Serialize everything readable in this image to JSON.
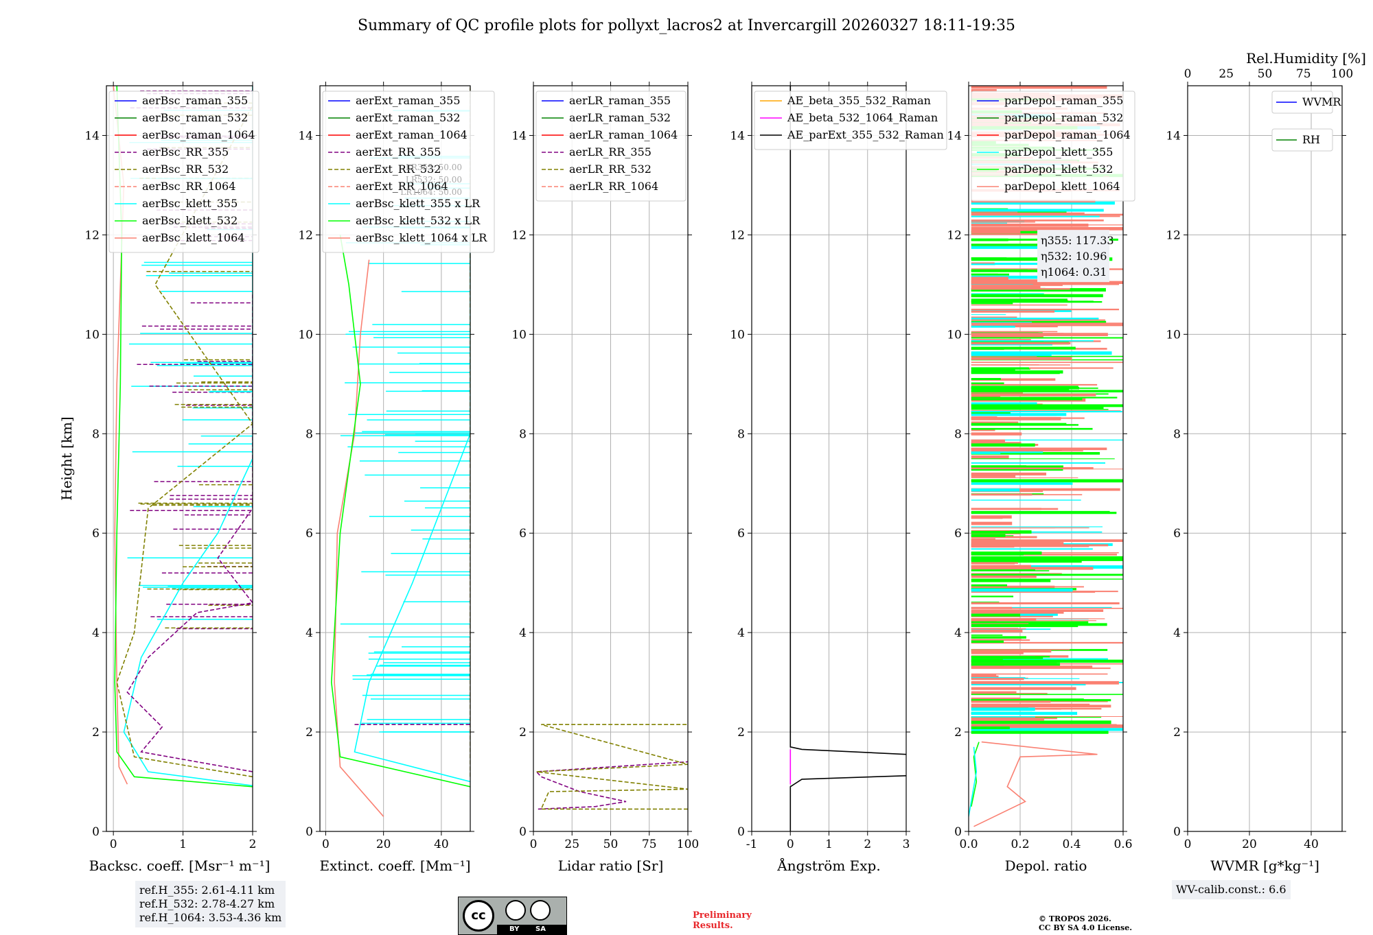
{
  "title": "Summary of QC profile plots for pollyxt_lacros2 at Invercargill 20260327 18:11-19:35",
  "colors": {
    "blue": "#0000ff",
    "green": "#008000",
    "red": "#ff0000",
    "purple": "#800080",
    "olive": "#808000",
    "salmon": "#fa8072",
    "cyan": "#00ffff",
    "lime": "#00ff00",
    "orange": "#ffa500",
    "magenta": "#ff00ff",
    "black": "#000000"
  },
  "chart_data": [
    {
      "type": "line",
      "xlabel": "Backsc. coeff. [Msr⁻¹ m⁻¹]",
      "ylabel": "Height [km]",
      "xlim": [
        -0.1,
        2
      ],
      "xticks": [
        0,
        1,
        2
      ],
      "ylim": [
        0,
        15
      ],
      "yticks": [
        0,
        2,
        4,
        6,
        8,
        10,
        12,
        14
      ],
      "legend": [
        "aerBsc_raman_355",
        "aerBsc_raman_532",
        "aerBsc_raman_1064",
        "aerBsc_RR_355",
        "aerBsc_RR_532",
        "aerBsc_RR_1064",
        "aerBsc_klett_355",
        "aerBsc_klett_532",
        "aerBsc_klett_1064"
      ],
      "series": [
        {
          "name": "aerBsc_klett_1064",
          "color": "salmon",
          "points": [
            [
              0.2,
              0.95
            ],
            [
              0.08,
              1.3
            ],
            [
              0.05,
              3
            ],
            [
              0.02,
              6
            ],
            [
              0.05,
              9
            ],
            [
              0.1,
              11
            ],
            [
              0.15,
              13
            ],
            [
              0.0,
              15
            ]
          ]
        },
        {
          "name": "aerBsc_klett_532",
          "color": "lime",
          "points": [
            [
              2,
              0.9
            ],
            [
              0.3,
              1.1
            ],
            [
              0.05,
              1.6
            ],
            [
              0.02,
              3
            ],
            [
              0.05,
              6
            ],
            [
              0.1,
              9
            ],
            [
              0.12,
              12
            ],
            [
              0.05,
              15
            ]
          ]
        },
        {
          "name": "aerBsc_klett_355",
          "color": "cyan",
          "points": [
            [
              2,
              0.92
            ],
            [
              0.5,
              1.2
            ],
            [
              0.15,
              2
            ],
            [
              0.4,
              3.5
            ],
            [
              1.0,
              5
            ],
            [
              1.5,
              6
            ],
            [
              2,
              7.5
            ],
            [
              2,
              9
            ],
            [
              2,
              11.5
            ],
            [
              2,
              15
            ]
          ]
        },
        {
          "name": "aerBsc_RR_355",
          "color": "purple",
          "points": [
            [
              2,
              1.2
            ],
            [
              0.4,
              1.6
            ],
            [
              0.7,
              2.1
            ],
            [
              0.2,
              2.8
            ],
            [
              0.5,
              3.5
            ],
            [
              1.2,
              4.4
            ],
            [
              2,
              4.6
            ],
            [
              1.5,
              5.5
            ],
            [
              2,
              6.5
            ],
            [
              2,
              8
            ],
            [
              2,
              10.8
            ]
          ]
        },
        {
          "name": "aerBsc_RR_532",
          "color": "olive",
          "points": [
            [
              2,
              1.1
            ],
            [
              0.3,
              1.5
            ],
            [
              0.05,
              3
            ],
            [
              0.3,
              4
            ],
            [
              0.5,
              6.5
            ],
            [
              2,
              8.2
            ],
            [
              0.6,
              11
            ],
            [
              2,
              14.6
            ]
          ]
        }
      ]
    },
    {
      "type": "line",
      "xlabel": "Extinct. coeff. [Mm⁻¹]",
      "xlim": [
        -2,
        50
      ],
      "xticks": [
        0,
        20,
        40
      ],
      "ylim": [
        0,
        15
      ],
      "yticks": [
        0,
        2,
        4,
        6,
        8,
        10,
        12,
        14
      ],
      "legend": [
        "aerExt_raman_355",
        "aerExt_raman_532",
        "aerExt_raman_1064",
        "aerExt_RR_355",
        "aerExt_RR_532",
        "aerExt_RR_1064",
        "aerBsc_klett_355 x LR",
        "aerBsc_klett_532 x LR",
        "aerBsc_klett_1064 x LR"
      ],
      "lr_note": [
        "LR355: 50.00",
        "LR532: 50.00",
        "LR1064: 50.00"
      ],
      "series": [
        {
          "name": "aerBsc_klett_1064 x LR",
          "color": "salmon",
          "points": [
            [
              20,
              0.3
            ],
            [
              5,
              1.3
            ],
            [
              3,
              3
            ],
            [
              4,
              6
            ],
            [
              10,
              8
            ],
            [
              12,
              10
            ],
            [
              15,
              11.5
            ]
          ]
        },
        {
          "name": "aerBsc_klett_532 x LR",
          "color": "lime",
          "points": [
            [
              50,
              0.9
            ],
            [
              5,
              1.5
            ],
            [
              2,
              3
            ],
            [
              5,
              6
            ],
            [
              12,
              9
            ],
            [
              8,
              11
            ],
            [
              5,
              12
            ]
          ]
        },
        {
          "name": "aerBsc_klett_355 x LR",
          "color": "cyan",
          "points": [
            [
              50,
              1.0
            ],
            [
              10,
              1.6
            ],
            [
              15,
              3
            ],
            [
              30,
              5
            ],
            [
              40,
              6.5
            ],
            [
              50,
              8
            ],
            [
              50,
              12
            ]
          ]
        },
        {
          "name": "aerExt_RR_532",
          "color": "olive",
          "points": [
            [
              50,
              1.1
            ],
            [
              50,
              1.9
            ],
            [
              50,
              15
            ]
          ]
        },
        {
          "name": "aerExt_RR_355",
          "color": "purple",
          "points": [
            [
              10,
              2.15
            ],
            [
              50,
              2.15
            ]
          ]
        }
      ]
    },
    {
      "type": "line",
      "xlabel": "Lidar ratio [Sr]",
      "xlim": [
        0,
        100
      ],
      "xticks": [
        0,
        25,
        50,
        75,
        100
      ],
      "ylim": [
        0,
        15
      ],
      "yticks": [
        0,
        2,
        4,
        6,
        8,
        10,
        12,
        14
      ],
      "legend": [
        "aerLR_raman_355",
        "aerLR_raman_532",
        "aerLR_raman_1064",
        "aerLR_RR_355",
        "aerLR_RR_532",
        "aerLR_RR_1064"
      ],
      "series": [
        {
          "name": "aerLR_RR_355",
          "color": "purple",
          "points": [
            [
              3,
              0.45
            ],
            [
              40,
              0.5
            ],
            [
              60,
              0.6
            ],
            [
              30,
              0.8
            ],
            [
              5,
              1.1
            ],
            [
              2,
              1.2
            ],
            [
              100,
              1.4
            ]
          ]
        },
        {
          "name": "aerLR_RR_532",
          "color": "olive",
          "points": [
            [
              100,
              0.45
            ],
            [
              5,
              0.45
            ],
            [
              10,
              0.8
            ],
            [
              100,
              0.85
            ],
            [
              2,
              1.2
            ],
            [
              100,
              1.35
            ],
            [
              5,
              2.15
            ],
            [
              100,
              2.15
            ]
          ]
        }
      ]
    },
    {
      "type": "line",
      "xlabel": "Ångström Exp.",
      "xlim": [
        -1,
        3
      ],
      "xticks": [
        -1,
        0,
        1,
        2,
        3
      ],
      "ylim": [
        0,
        15
      ],
      "yticks": [
        0,
        2,
        4,
        6,
        8,
        10,
        12,
        14
      ],
      "legend": [
        "AE_beta_355_532_Raman",
        "AE_beta_532_1064_Raman",
        "AE_parExt_355_532_Raman"
      ],
      "series": [
        {
          "name": "AE_parExt_355_532_Raman",
          "color": "black",
          "points": [
            [
              0,
              0
            ],
            [
              0,
              0.9
            ],
            [
              0.3,
              1.05
            ],
            [
              3,
              1.12
            ]
          ]
        },
        {
          "name": "AE_parExt_355_532_Raman upper",
          "color": "black",
          "points": [
            [
              3,
              1.55
            ],
            [
              0.3,
              1.65
            ],
            [
              0,
              1.7
            ],
            [
              0,
              15
            ]
          ]
        },
        {
          "name": "AE_beta_532_1064_Raman",
          "color": "magenta",
          "points": [
            [
              0,
              0.95
            ],
            [
              0,
              1.65
            ]
          ]
        }
      ]
    },
    {
      "type": "line",
      "xlabel": "Depol. ratio",
      "xlim": [
        0,
        0.6
      ],
      "xticks": [
        0.0,
        0.2,
        0.4,
        0.6
      ],
      "ylim": [
        0,
        15
      ],
      "yticks": [
        0,
        2,
        4,
        6,
        8,
        10,
        12,
        14
      ],
      "legend": [
        "parDepol_raman_355",
        "parDepol_raman_532",
        "parDepol_raman_1064",
        "parDepol_klett_355",
        "parDepol_klett_532",
        "parDepol_klett_1064"
      ],
      "eta": [
        "η355: 117.33",
        "η532: 10.96",
        "η1064: 0.31"
      ],
      "series": [
        {
          "name": "parDepol_klett_1064",
          "color": "salmon",
          "points": [
            [
              0.02,
              0.1
            ],
            [
              0.22,
              0.6
            ],
            [
              0.15,
              0.9
            ],
            [
              0.2,
              1.5
            ],
            [
              0.5,
              1.55
            ],
            [
              0.05,
              1.8
            ]
          ]
        },
        {
          "name": "parDepol_klett_532",
          "color": "lime",
          "points": [
            [
              0.01,
              0.5
            ],
            [
              0.03,
              1.0
            ],
            [
              0.02,
              1.5
            ],
            [
              0.04,
              1.8
            ]
          ]
        },
        {
          "name": "parDepol_klett_355",
          "color": "cyan",
          "points": [
            [
              0.0,
              0.3
            ],
            [
              0.03,
              1.2
            ],
            [
              0.02,
              1.7
            ]
          ]
        }
      ]
    },
    {
      "type": "line",
      "xlabel": "WVMR [g*kg⁻¹]",
      "xlim": [
        0,
        50
      ],
      "xticks": [
        0,
        20,
        40
      ],
      "x2label": "Rel.Humidity [%]",
      "x2lim": [
        0,
        100
      ],
      "x2ticks": [
        0,
        25,
        50,
        75,
        100
      ],
      "ylim": [
        0,
        15
      ],
      "yticks": [
        0,
        2,
        4,
        6,
        8,
        10,
        12,
        14
      ],
      "legend": [
        "WVMR",
        "RH"
      ],
      "series": []
    }
  ],
  "notes": {
    "ref_lines": [
      "ref.H_355: 2.61-4.11 km",
      "ref.H_532: 2.78-4.27 km",
      "ref.H_1064: 3.53-4.36 km"
    ],
    "wv_calib": "WV-calib.const.: 6.6",
    "prelim": [
      "Preliminary",
      "Results."
    ],
    "copyright": [
      "© TROPOS 2026.",
      "CC BY SA 4.0 License."
    ],
    "cc_label": "cc",
    "by_label": "BY",
    "sa_label": "SA"
  }
}
